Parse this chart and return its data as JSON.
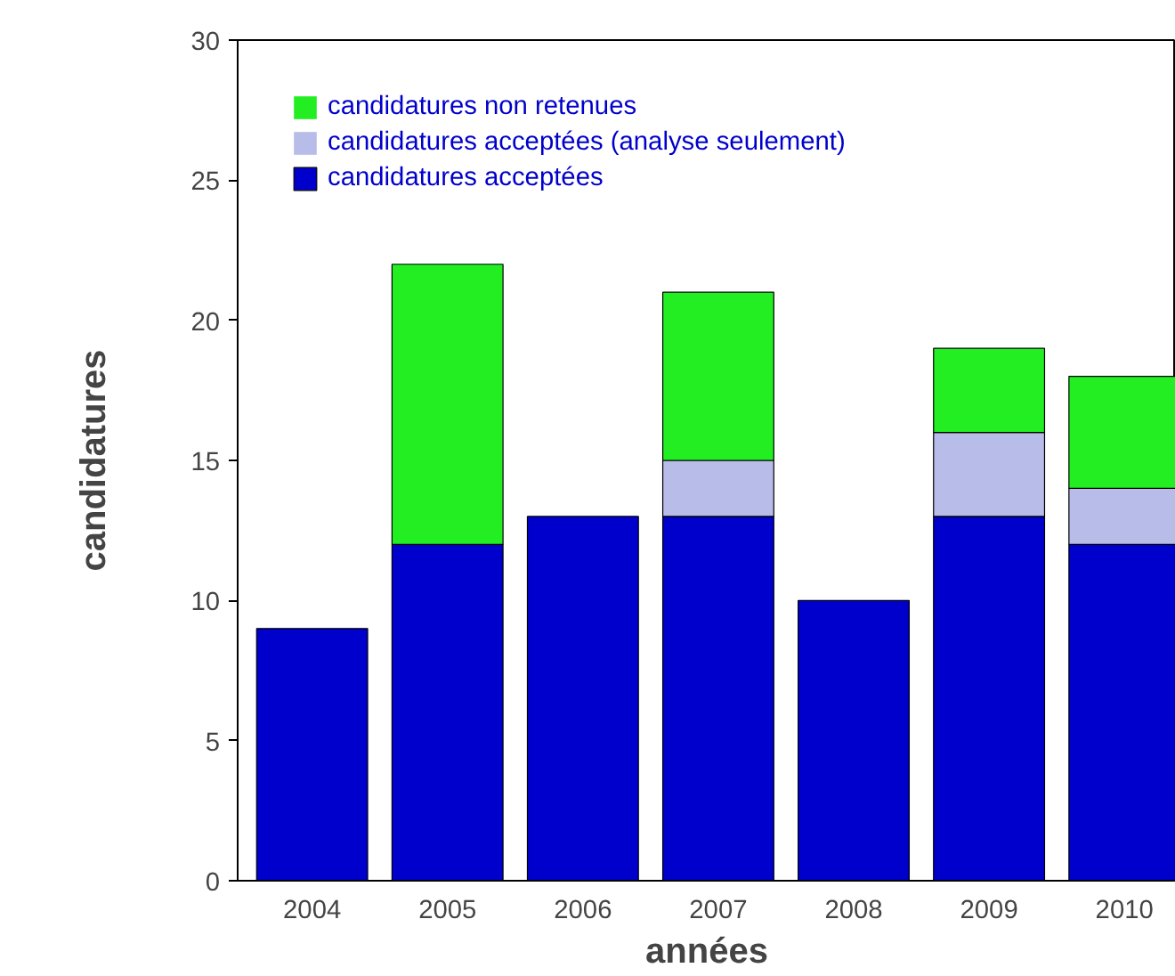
{
  "chart_data": {
    "type": "bar",
    "stacked": true,
    "xlabel": "années",
    "ylabel": "candidatures",
    "categories": [
      "2004",
      "2005",
      "2006",
      "2007",
      "2008",
      "2009",
      "2010"
    ],
    "series": [
      {
        "name": "candidatures acceptées",
        "color": "#0000cc",
        "values": [
          9,
          12,
          13,
          13,
          10,
          13,
          12
        ]
      },
      {
        "name": "candidatures acceptées (analyse seulement)",
        "color": "#b8bce8",
        "values": [
          0,
          0,
          0,
          2,
          0,
          3,
          2
        ]
      },
      {
        "name": "candidatures non retenues",
        "color": "#22ee22",
        "values": [
          0,
          10,
          0,
          6,
          0,
          3,
          4
        ]
      }
    ],
    "ylim": [
      0,
      30
    ],
    "yticks": [
      0,
      5,
      10,
      15,
      20,
      25,
      30
    ],
    "grid": false,
    "legend": "top left"
  }
}
